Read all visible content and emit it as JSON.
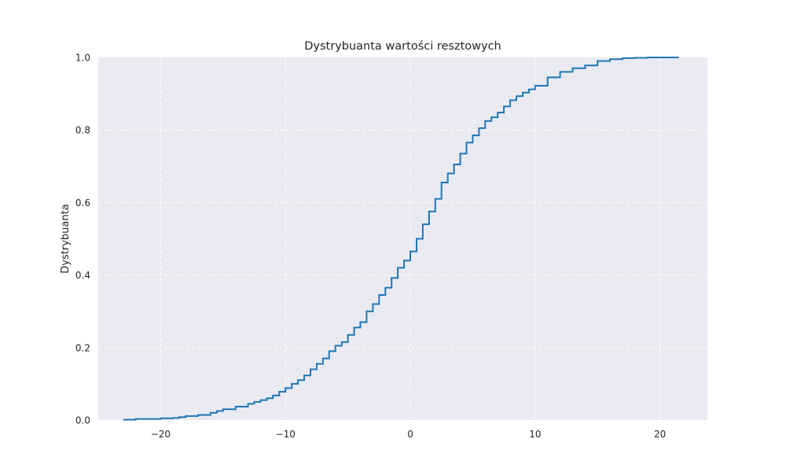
{
  "chart_data": {
    "type": "line",
    "step": true,
    "title": "Dystrybuanta wartości resztowych",
    "xlabel": "",
    "ylabel": "Dystrybuanta",
    "xlim": [
      -25.0,
      23.8
    ],
    "ylim": [
      0.0,
      1.0
    ],
    "xticks": [
      -20,
      -10,
      0,
      10,
      20
    ],
    "xtick_labels": [
      "−20",
      "−10",
      "0",
      "10",
      "20"
    ],
    "yticks": [
      0.0,
      0.2,
      0.4,
      0.6,
      0.8,
      1.0
    ],
    "ytick_labels": [
      "0.0",
      "0.2",
      "0.4",
      "0.6",
      "0.8",
      "1.0"
    ],
    "grid": true,
    "colors": {
      "plot_bg": "#eaeaf2",
      "grid": "#ffffff",
      "line": "#1f77b4"
    },
    "series": [
      {
        "x": [
          -23.0,
          -22.0,
          -20.0,
          -19.0,
          -18.5,
          -18.0,
          -17.0,
          -16.0,
          -15.5,
          -15.0,
          -14.0,
          -13.0,
          -12.5,
          -12.0,
          -11.5,
          -11.0,
          -10.5,
          -10.0,
          -9.5,
          -9.0,
          -8.5,
          -8.0,
          -7.5,
          -7.0,
          -6.5,
          -6.0,
          -5.5,
          -5.0,
          -4.5,
          -4.0,
          -3.5,
          -3.0,
          -2.5,
          -2.0,
          -1.5,
          -1.0,
          -0.5,
          0.0,
          0.5,
          1.0,
          1.5,
          2.0,
          2.5,
          3.0,
          3.5,
          4.0,
          4.5,
          5.0,
          5.5,
          6.0,
          6.5,
          7.0,
          7.5,
          8.0,
          8.5,
          9.0,
          9.5,
          10.0,
          11.0,
          12.0,
          13.0,
          14.0,
          15.0,
          16.0,
          17.0,
          18.0,
          19.0,
          21.5
        ],
        "y": [
          0.001,
          0.003,
          0.005,
          0.006,
          0.008,
          0.011,
          0.014,
          0.02,
          0.025,
          0.03,
          0.037,
          0.045,
          0.05,
          0.055,
          0.06,
          0.068,
          0.078,
          0.088,
          0.1,
          0.11,
          0.123,
          0.14,
          0.155,
          0.17,
          0.19,
          0.205,
          0.215,
          0.235,
          0.255,
          0.27,
          0.3,
          0.32,
          0.345,
          0.365,
          0.392,
          0.42,
          0.44,
          0.465,
          0.5,
          0.54,
          0.575,
          0.61,
          0.655,
          0.68,
          0.705,
          0.735,
          0.765,
          0.785,
          0.805,
          0.825,
          0.835,
          0.848,
          0.865,
          0.882,
          0.893,
          0.903,
          0.912,
          0.922,
          0.945,
          0.96,
          0.97,
          0.978,
          0.99,
          0.995,
          0.998,
          0.999,
          1.0,
          1.0
        ]
      }
    ]
  }
}
